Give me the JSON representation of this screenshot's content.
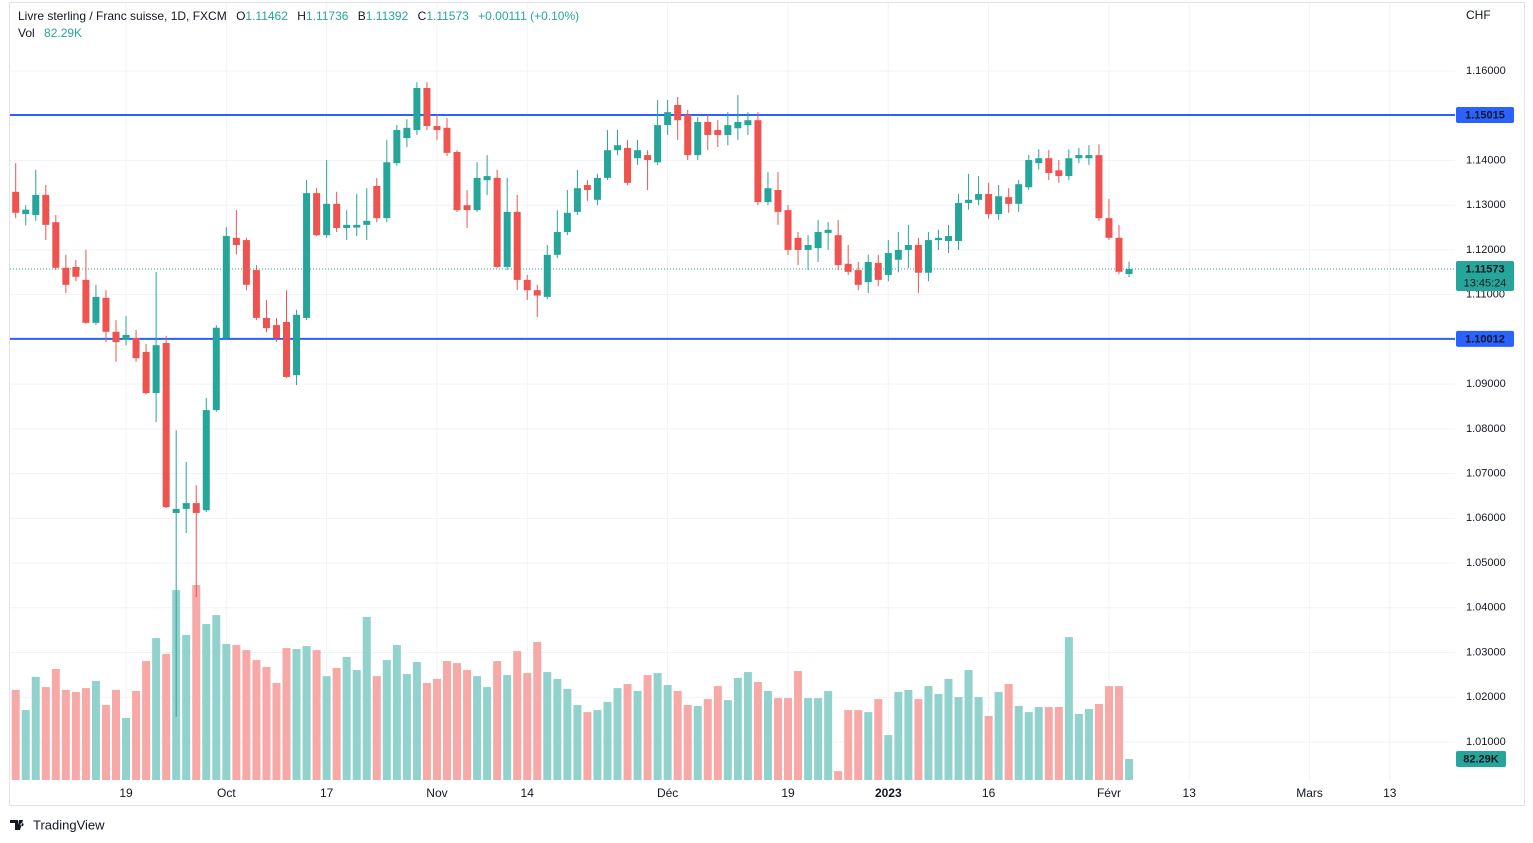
{
  "chart_data": {
    "type": "candlestick",
    "title": "Livre sterling / Franc suisse, 1D, FXCM",
    "ohlc_letters": {
      "open": "O",
      "high": "H",
      "low": "B",
      "close": "C"
    },
    "change": "+0.00111 (+0.10%)",
    "currency": "CHF",
    "countdown": "13:45:24",
    "up_color": "#26a69a",
    "down_color": "#ef5350",
    "categories": [
      null,
      null,
      null,
      null,
      null,
      null,
      null,
      null,
      null,
      null,
      null,
      "19",
      null,
      null,
      null,
      null,
      null,
      null,
      null,
      null,
      null,
      "Oct",
      null,
      null,
      null,
      null,
      null,
      null,
      null,
      null,
      null,
      "17",
      null,
      null,
      null,
      null,
      null,
      null,
      null,
      null,
      null,
      null,
      "Nov",
      null,
      null,
      null,
      null,
      null,
      null,
      null,
      null,
      "14",
      null,
      null,
      null,
      null,
      null,
      null,
      null,
      null,
      null,
      null,
      null,
      null,
      null,
      "Déc",
      null,
      null,
      null,
      null,
      null,
      null,
      null,
      null,
      null,
      null,
      null,
      "19",
      null,
      null,
      null,
      null,
      null,
      null,
      null,
      null,
      null,
      "2023",
      null,
      null,
      null,
      null,
      null,
      null,
      null,
      null,
      null,
      "16",
      null,
      null,
      null,
      null,
      null,
      null,
      null,
      null,
      null,
      null,
      null,
      "Févr",
      null,
      null,
      null,
      null,
      null,
      null,
      null,
      "13",
      null,
      null,
      null,
      null,
      null,
      null,
      null,
      null,
      null,
      null,
      null,
      "Mars",
      null,
      null,
      null,
      null,
      null,
      null,
      null,
      "13"
    ],
    "open": [
      1.133,
      1.128,
      1.1278,
      1.1323,
      1.1262,
      1.116,
      1.1162,
      1.1133,
      1.1037,
      1.1093,
      1.1017,
      1.0999,
      1.1003,
      1.0972,
      1.088,
      1.0992,
      1.0612,
      1.0621,
      1.0634,
      1.0618,
      1.0842,
      1.1003,
      1.1227,
      1.1222,
      1.1155,
      1.1048,
      1.1032,
      1.1039,
      1.092,
      1.1048,
      1.1327,
      1.1233,
      1.1303,
      1.1249,
      1.125,
      1.1256,
      1.1343,
      1.1271,
      1.1394,
      1.145,
      1.1468,
      1.1562,
      1.1477,
      1.1473,
      1.1419,
      1.13,
      1.1289,
      1.1356,
      1.1361,
      1.1162,
      1.1285,
      1.1133,
      1.111,
      1.1095,
      1.1189,
      1.124,
      1.1285,
      1.1345,
      1.1312,
      1.1361,
      1.1423,
      1.1428,
      1.1405,
      1.1412,
      1.1396,
      1.1479,
      1.1524,
      1.1502,
      1.1412,
      1.1486,
      1.1468,
      1.1457,
      1.1472,
      1.1479,
      1.149,
      1.1307,
      1.1334,
      1.1289,
      1.1227,
      1.12,
      1.1204,
      1.1238,
      1.1233,
      1.1169,
      1.1155,
      1.1128,
      1.1171,
      1.1144,
      1.1178,
      1.12,
      1.1211,
      1.1149,
      1.1222,
      1.122,
      1.122,
      1.1305,
      1.1312,
      1.1325,
      1.128,
      1.1318,
      1.1303,
      1.134,
      1.1394,
      1.1405,
      1.1378,
      1.1365,
      1.1405,
      1.1405,
      1.1412,
      1.1271,
      1.1227,
      1.11462,
      null,
      null,
      null,
      null,
      null,
      null,
      null,
      null,
      null,
      null,
      null,
      null,
      null,
      null,
      null,
      null,
      null,
      null,
      null,
      null,
      null,
      null,
      null,
      null,
      null,
      null
    ],
    "high": [
      1.1394,
      1.13,
      1.1379,
      1.1345,
      1.1278,
      1.1189,
      1.1178,
      1.12,
      1.1122,
      1.111,
      1.1043,
      1.1052,
      1.1021,
      1.099,
      1.1151,
      1.1008,
      1.0797,
      1.0726,
      1.0674,
      1.0869,
      1.1032,
      1.1251,
      1.1289,
      1.1227,
      1.1166,
      1.1088,
      1.1048,
      1.111,
      1.1066,
      1.1356,
      1.1338,
      1.1401,
      1.133,
      1.1289,
      1.1325,
      1.1338,
      1.1361,
      1.1446,
      1.1479,
      1.1492,
      1.1575,
      1.1575,
      1.1502,
      1.1495,
      1.1423,
      1.1334,
      1.1396,
      1.1412,
      1.1379,
      1.1361,
      1.1323,
      1.1144,
      1.1122,
      1.1211,
      1.1289,
      1.1334,
      1.1379,
      1.1356,
      1.137,
      1.1468,
      1.1468,
      1.1446,
      1.1446,
      1.1423,
      1.1535,
      1.1535,
      1.1542,
      1.1513,
      1.1497,
      1.1502,
      1.149,
      1.1508,
      1.1546,
      1.1508,
      1.1508,
      1.1374,
      1.1374,
      1.13,
      1.124,
      1.1233,
      1.1267,
      1.1262,
      1.1267,
      1.1211,
      1.1173,
      1.1189,
      1.1189,
      1.1222,
      1.124,
      1.1256,
      1.1227,
      1.124,
      1.1245,
      1.1256,
      1.1325,
      1.137,
      1.1365,
      1.135,
      1.1345,
      1.1338,
      1.1356,
      1.1412,
      1.1425,
      1.1423,
      1.1401,
      1.1425,
      1.1428,
      1.1434,
      1.1436,
      1.1314,
      1.1256,
      1.11736,
      null,
      null,
      null,
      null,
      null,
      null,
      null,
      null,
      null,
      null,
      null,
      null,
      null,
      null,
      null,
      null,
      null,
      null,
      null,
      null,
      null,
      null,
      null,
      null,
      null,
      null
    ],
    "low": [
      1.1271,
      1.1255,
      1.1265,
      1.1222,
      1.1155,
      1.1104,
      1.113,
      1.1035,
      1.1032,
      1.0994,
      1.095,
      1.0987,
      1.095,
      1.0877,
      1.0815,
      1.0623,
      1.0156,
      1.0567,
      1.0424,
      1.0614,
      1.0838,
      1.0999,
      1.119,
      1.111,
      1.1043,
      1.1016,
      1.0994,
      1.0914,
      1.0898,
      1.1043,
      1.1231,
      1.1227,
      1.124,
      1.1222,
      1.1231,
      1.1222,
      1.1262,
      1.1262,
      1.1388,
      1.143,
      1.1457,
      1.1468,
      1.1446,
      1.141,
      1.1285,
      1.1249,
      1.1285,
      1.1323,
      1.116,
      1.1155,
      1.111,
      1.1088,
      1.105,
      1.109,
      1.1182,
      1.1233,
      1.1278,
      1.131,
      1.13,
      1.1356,
      1.1412,
      1.1345,
      1.139,
      1.1334,
      1.139,
      1.1457,
      1.1446,
      1.1401,
      1.1401,
      1.1423,
      1.143,
      1.1434,
      1.1446,
      1.1457,
      1.13,
      1.13,
      1.1256,
      1.1189,
      1.1166,
      1.1155,
      1.1173,
      1.12,
      1.1155,
      1.1144,
      1.111,
      1.1104,
      1.1119,
      1.113,
      1.115,
      1.116,
      1.1104,
      1.113,
      1.12,
      1.1193,
      1.12,
      1.129,
      1.13,
      1.127,
      1.1267,
      1.1283,
      1.1285,
      1.1334,
      1.138,
      1.1356,
      1.135,
      1.1356,
      1.1394,
      1.139,
      1.1265,
      1.1222,
      1.1146,
      1.11392,
      null,
      null,
      null,
      null,
      null,
      null,
      null,
      null,
      null,
      null,
      null,
      null,
      null,
      null,
      null,
      null,
      null,
      null,
      null,
      null,
      null,
      null,
      null,
      null,
      null,
      null
    ],
    "close": [
      1.1283,
      1.129,
      1.1323,
      1.1256,
      1.116,
      1.1122,
      1.114,
      1.1037,
      1.1095,
      1.1017,
      1.0994,
      1.101,
      1.0958,
      1.088,
      1.0987,
      1.0625,
      1.0621,
      1.0634,
      1.0612,
      1.0842,
      1.1026,
      1.1231,
      1.1211,
      1.1122,
      1.1048,
      1.1025,
      1.1003,
      1.0916,
      1.1055,
      1.1327,
      1.1233,
      1.1303,
      1.1249,
      1.1256,
      1.1256,
      1.1265,
      1.1271,
      1.1396,
      1.1468,
      1.1473,
      1.1562,
      1.1477,
      1.1468,
      1.1417,
      1.1289,
      1.1289,
      1.1361,
      1.1365,
      1.1162,
      1.1285,
      1.1133,
      1.111,
      1.1098,
      1.1189,
      1.124,
      1.1283,
      1.1338,
      1.1334,
      1.1361,
      1.1423,
      1.1434,
      1.135,
      1.1423,
      1.1401,
      1.1479,
      1.1508,
      1.149,
      1.1412,
      1.1486,
      1.1457,
      1.1457,
      1.1479,
      1.1486,
      1.149,
      1.1307,
      1.1338,
      1.1285,
      1.12,
      1.12,
      1.1211,
      1.124,
      1.1245,
      1.1166,
      1.1151,
      1.1122,
      1.1173,
      1.1133,
      1.1193,
      1.12,
      1.1211,
      1.1149,
      1.1222,
      1.1227,
      1.1231,
      1.1305,
      1.1312,
      1.1325,
      1.128,
      1.132,
      1.1303,
      1.1347,
      1.1401,
      1.1405,
      1.1372,
      1.1365,
      1.1405,
      1.1412,
      1.1412,
      1.1271,
      1.1227,
      1.1151,
      1.11573,
      null,
      null,
      null,
      null,
      null,
      null,
      null,
      null,
      null,
      null,
      null,
      null,
      null,
      null,
      null,
      null,
      null,
      null,
      null,
      null,
      null,
      null,
      null,
      null,
      null,
      null
    ],
    "volume": {
      "name": "Vol",
      "last_label": "82.29K",
      "up_color": "#92d2cc",
      "down_color": "#f7a9a7",
      "values": [
        353,
        274,
        404,
        364,
        435,
        353,
        345,
        360,
        388,
        294,
        353,
        243,
        349,
        466,
        556,
        494,
        744,
        568,
        764,
        611,
        646,
        533,
        529,
        509,
        470,
        443,
        380,
        517,
        513,
        525,
        509,
        407,
        439,
        482,
        431,
        639,
        407,
        470,
        529,
        415,
        462,
        380,
        396,
        466,
        458,
        431,
        407,
        364,
        466,
        411,
        505,
        419,
        541,
        423,
        396,
        357,
        294,
        266,
        274,
        306,
        360,
        376,
        349,
        411,
        419,
        372,
        349,
        294,
        290,
        317,
        368,
        313,
        400,
        423,
        384,
        349,
        321,
        321,
        427,
        321,
        321,
        349,
        35,
        274,
        274,
        266,
        317,
        176,
        345,
        353,
        317,
        368,
        337,
        396,
        325,
        431,
        325,
        251,
        345,
        376,
        290,
        266,
        286,
        286,
        286,
        560,
        259,
        278,
        298,
        368,
        368,
        82.29,
        null,
        null,
        null,
        null,
        null,
        null,
        null,
        null,
        null,
        null,
        null,
        null,
        null,
        null,
        null,
        null,
        null,
        null,
        null,
        null,
        null,
        null,
        null,
        null,
        null,
        null
      ]
    },
    "hlines": [
      1.15015,
      1.10012
    ],
    "hline_color": "#2962ff",
    "ylim": [
      1.0015,
      1.1752
    ],
    "yticks": [
      {
        "value": 1.01,
        "label": "1.01000"
      },
      {
        "value": 1.02,
        "label": "1.02000"
      },
      {
        "value": 1.03,
        "label": "1.03000"
      },
      {
        "value": 1.04,
        "label": "1.04000"
      },
      {
        "value": 1.05,
        "label": "1.05000"
      },
      {
        "value": 1.06,
        "label": "1.06000"
      },
      {
        "value": 1.07,
        "label": "1.07000"
      },
      {
        "value": 1.08,
        "label": "1.08000"
      },
      {
        "value": 1.09,
        "label": "1.09000"
      },
      {
        "value": 1.1,
        "label": "1.10000"
      },
      {
        "value": 1.11,
        "label": "1.11000"
      },
      {
        "value": 1.12,
        "label": "1.12000"
      },
      {
        "value": 1.13,
        "label": "1.13000"
      },
      {
        "value": 1.14,
        "label": "1.14000"
      },
      {
        "value": 1.15,
        "label": "1.15000"
      },
      {
        "value": 1.16,
        "label": "1.16000"
      }
    ],
    "grid": true
  },
  "footer": {
    "brand": "TradingView"
  }
}
